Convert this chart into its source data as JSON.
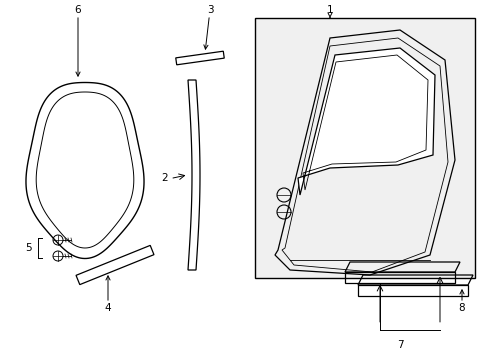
{
  "bg_color": "#ffffff",
  "line_color": "#000000",
  "fig_width": 4.89,
  "fig_height": 3.6,
  "dpi": 100,
  "lw": 0.9
}
